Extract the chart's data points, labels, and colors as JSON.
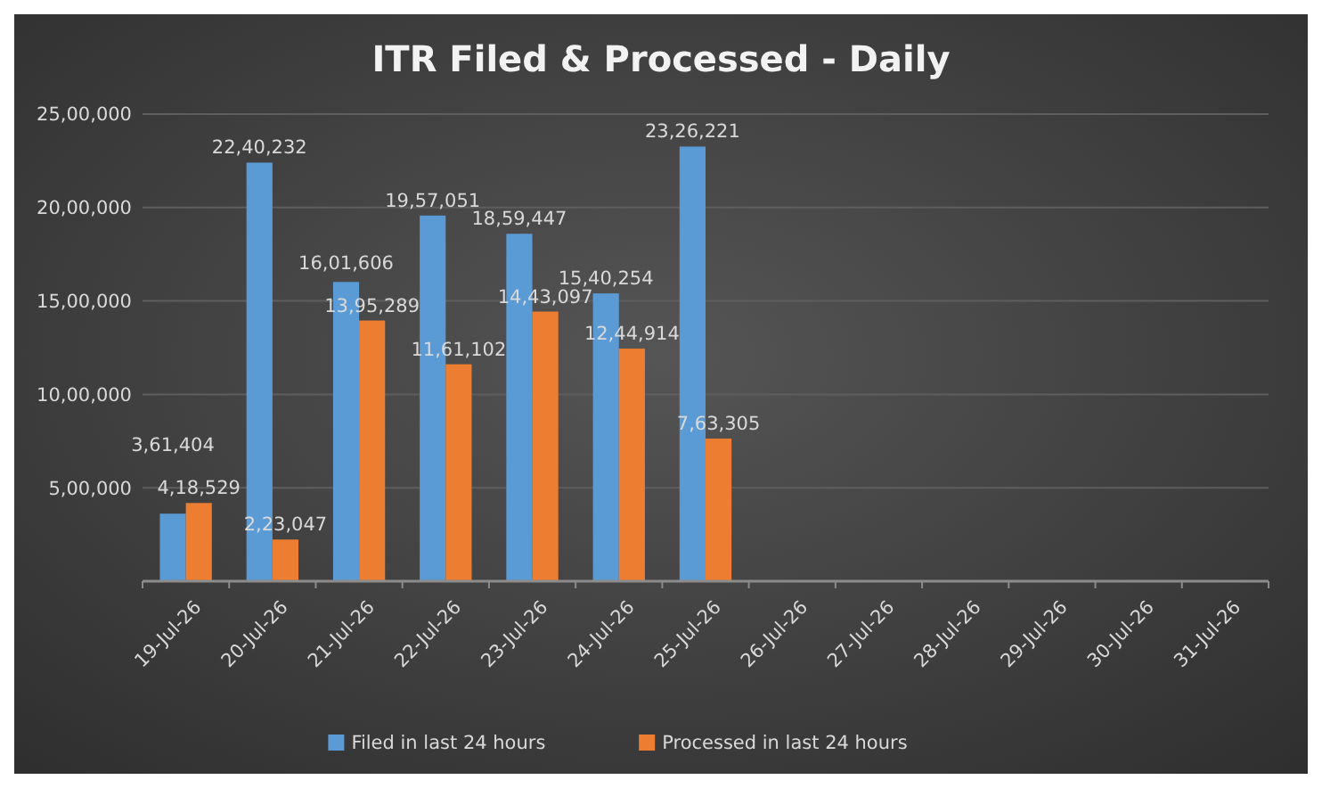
{
  "chart_data": {
    "type": "bar",
    "title": "ITR Filed & Processed - Daily",
    "categories": [
      "19-Jul-26",
      "20-Jul-26",
      "21-Jul-26",
      "22-Jul-26",
      "23-Jul-26",
      "24-Jul-26",
      "25-Jul-26",
      "26-Jul-26",
      "27-Jul-26",
      "28-Jul-26",
      "29-Jul-26",
      "30-Jul-26",
      "31-Jul-26"
    ],
    "series": [
      {
        "name": "Filed in last 24 hours",
        "color": "#5b9bd5",
        "values": [
          361404,
          2240232,
          1601606,
          1957051,
          1859447,
          1540254,
          2326221,
          null,
          null,
          null,
          null,
          null,
          null
        ],
        "value_labels": [
          "3,61,404",
          "22,40,232",
          "16,01,606",
          "19,57,051",
          "18,59,447",
          "15,40,254",
          "23,26,221",
          null,
          null,
          null,
          null,
          null,
          null
        ]
      },
      {
        "name": "Processed in last 24 hours",
        "color": "#ed7d31",
        "values": [
          418529,
          223047,
          1395289,
          1161102,
          1443097,
          1244914,
          763305,
          null,
          null,
          null,
          null,
          null,
          null
        ],
        "value_labels": [
          "4,18,529",
          "2,23,047",
          "13,95,289",
          "11,61,102",
          "14,43,097",
          "12,44,914",
          "7,63,305",
          null,
          null,
          null,
          null,
          null,
          null
        ]
      }
    ],
    "ylim": [
      0,
      2500000
    ],
    "yticks": [
      {
        "value": 500000,
        "label": "5,00,000"
      },
      {
        "value": 1000000,
        "label": "10,00,000"
      },
      {
        "value": 1500000,
        "label": "15,00,000"
      },
      {
        "value": 2000000,
        "label": "20,00,000"
      },
      {
        "value": 2500000,
        "label": "25,00,000"
      }
    ],
    "grid": "y",
    "legend": "bottom"
  }
}
